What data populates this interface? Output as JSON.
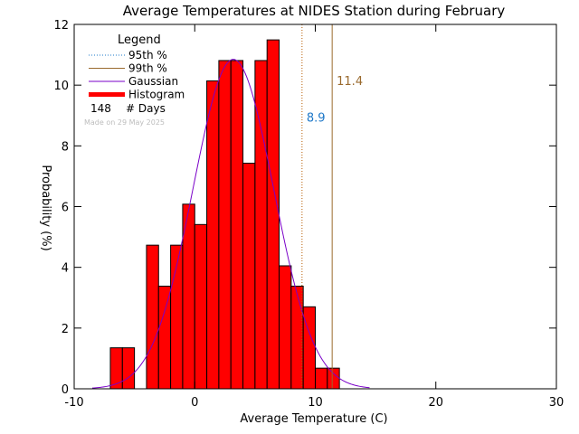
{
  "chart_data": {
    "type": "bar",
    "title": "Average Temperatures at NIDES Station during February",
    "xlabel": "Average Temperature (C)",
    "ylabel": "Probability (%)",
    "xlim": [
      -10,
      30
    ],
    "ylim": [
      0,
      12
    ],
    "xticks": [
      -10,
      0,
      10,
      20,
      30
    ],
    "yticks": [
      0,
      2,
      4,
      6,
      8,
      10,
      12
    ],
    "bin_width": 1,
    "histogram": [
      {
        "x0": -7,
        "value": 1.35
      },
      {
        "x0": -6,
        "value": 1.35
      },
      {
        "x0": -4,
        "value": 4.73
      },
      {
        "x0": -3,
        "value": 3.38
      },
      {
        "x0": -2,
        "value": 4.73
      },
      {
        "x0": -1,
        "value": 6.08
      },
      {
        "x0": 0,
        "value": 5.41
      },
      {
        "x0": 1,
        "value": 10.14
      },
      {
        "x0": 2,
        "value": 10.81
      },
      {
        "x0": 3,
        "value": 10.81
      },
      {
        "x0": 4,
        "value": 7.43
      },
      {
        "x0": 5,
        "value": 10.81
      },
      {
        "x0": 6,
        "value": 11.49
      },
      {
        "x0": 7,
        "value": 4.05
      },
      {
        "x0": 8,
        "value": 3.38
      },
      {
        "x0": 9,
        "value": 2.7
      },
      {
        "x0": 10,
        "value": 0.68
      },
      {
        "x0": 11,
        "value": 0.68
      }
    ],
    "gaussian": {
      "mean": 3.2,
      "sigma": 3.35,
      "peak": 10.85,
      "x_range": [
        -8.5,
        14.5
      ]
    },
    "percentiles": [
      {
        "name": "95th %",
        "value": 8.9,
        "label": "8.9",
        "color": "#b85c00",
        "label_color": "#1e78c8",
        "style": "dotted",
        "label_y": 8.8
      },
      {
        "name": "99th %",
        "value": 11.4,
        "label": "11.4",
        "color": "#9a6a2e",
        "label_color": "#9a6a2e",
        "style": "solid",
        "label_y": 10.0
      }
    ],
    "colors": {
      "histogram_fill": "#ff0000",
      "histogram_edge": "#000000",
      "gaussian": "#7a00c8",
      "p95_legend": "#1e78c8",
      "p99_legend": "#9a6a2e",
      "legend_text": "#000000"
    },
    "legend": {
      "title": "Legend",
      "placement": "top-left",
      "entries": [
        {
          "label": "95th %",
          "kind": "dotted",
          "color": "#1e78c8"
        },
        {
          "label": "99th %",
          "kind": "solid",
          "color": "#9a6a2e"
        },
        {
          "label": "Gaussian",
          "kind": "solid",
          "color": "#7a00c8"
        },
        {
          "label": "Histogram",
          "kind": "thick",
          "color": "#ff0000"
        }
      ],
      "days_count": "148",
      "days_label": "# Days",
      "credit": "Made on 29 May 2025"
    },
    "grid": false
  }
}
